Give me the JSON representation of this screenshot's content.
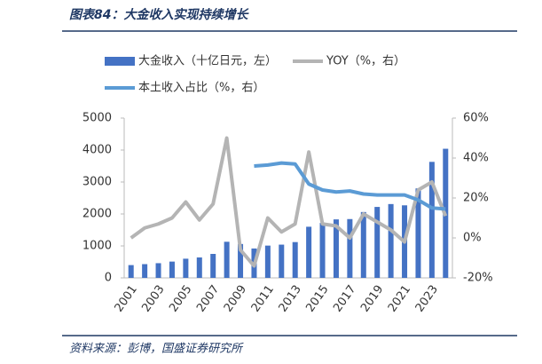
{
  "header": {
    "title": "图表84：大金收入实现持续增长"
  },
  "chart_data": {
    "type": "bar-line",
    "categories": [
      "2001",
      null,
      "2003",
      null,
      "2005",
      null,
      "2007",
      null,
      "2009",
      null,
      "2011",
      null,
      "2013",
      null,
      "2015",
      null,
      "2017",
      null,
      "2019",
      null,
      "2021",
      null,
      "2023",
      null
    ],
    "series": [
      {
        "name": "大金收入（十亿日元，左）",
        "type": "bar",
        "axis": "y",
        "color": "#4472c4",
        "values": [
          400,
          430,
          460,
          510,
          600,
          640,
          750,
          1130,
          1060,
          920,
          1010,
          1040,
          1120,
          1600,
          1720,
          1830,
          1840,
          2060,
          2220,
          2310,
          2270,
          2800,
          3630,
          4040
        ]
      },
      {
        "name": "YOY（%，右）",
        "type": "line",
        "axis": "y2",
        "color": "#b4b4b4",
        "values": [
          0,
          5,
          7,
          10,
          18,
          9,
          17,
          50,
          -6,
          -14,
          10,
          3,
          7,
          43,
          7,
          6,
          0,
          12,
          8,
          4,
          -2,
          24,
          28,
          11
        ]
      },
      {
        "name": "本土收入占比（%，右）",
        "type": "line",
        "axis": "y2",
        "color": "#5b9bd5",
        "values": [
          null,
          null,
          null,
          null,
          null,
          null,
          null,
          null,
          null,
          36,
          36.5,
          37.5,
          37,
          27,
          24,
          23,
          23.5,
          22,
          21.5,
          21.5,
          21.5,
          19,
          15,
          14.5
        ]
      }
    ],
    "ylim": [
      0,
      5000
    ],
    "yticks": [
      0,
      1000,
      2000,
      3000,
      4000,
      5000
    ],
    "y2lim": [
      -20,
      60
    ],
    "y2ticks": [
      {
        "value": -20,
        "label": "-20%"
      },
      {
        "value": 0,
        "label": "0%"
      },
      {
        "value": 20,
        "label": "20%"
      },
      {
        "value": 40,
        "label": "40%"
      },
      {
        "value": 60,
        "label": "60%"
      }
    ]
  },
  "footer": {
    "source": "资料来源：彭博，国盛证券研究所"
  }
}
